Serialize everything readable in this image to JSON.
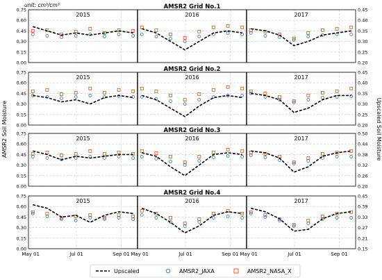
{
  "figure": {
    "unit_label": "unit: cm³/cm³",
    "left_axis_label": "AMSR2 Soil Moisture",
    "right_axis_label": "Upscaled Soil Moisture"
  },
  "legend": {
    "items": [
      {
        "label": "Upscaled",
        "style": "dashed-line",
        "color": "#000000"
      },
      {
        "label": "AMSR2_JAXA",
        "style": "circle",
        "color": "#1f77b4"
      },
      {
        "label": "AMSR2_NASA_X",
        "style": "square",
        "color": "#ff4500"
      }
    ]
  },
  "chart_data": [
    {
      "type": "scatter",
      "title": "AMSR2 Grid No.1",
      "panels": [
        "2015",
        "2016",
        "2017"
      ],
      "x_ticks": [
        "May 01",
        "Jul 01",
        "Sep 01"
      ],
      "left_ylim": [
        0.0,
        0.75
      ],
      "left_ticks": [
        "0.00",
        "0.15",
        "0.30",
        "0.45",
        "0.60",
        "0.75"
      ],
      "right_ylim": [
        0.2,
        0.45
      ],
      "right_ticks": [
        "0.20",
        "0.25",
        "0.30",
        "0.35",
        "0.40",
        "0.45"
      ],
      "series": [
        {
          "name": "Upscaled",
          "axis": "right",
          "by_year": {
            "2015": [
              0.37,
              0.35,
              0.33,
              0.34,
              0.33,
              0.34,
              0.35,
              0.34
            ],
            "2016": [
              0.36,
              0.34,
              0.3,
              0.26,
              0.3,
              0.34,
              0.35,
              0.34
            ],
            "2017": [
              0.36,
              0.35,
              0.33,
              0.28,
              0.3,
              0.33,
              0.34,
              0.35
            ]
          }
        },
        {
          "name": "AMSR2_JAXA",
          "axis": "left",
          "by_year": {
            "2015": [
              0.4,
              0.38,
              0.36,
              0.38,
              0.4,
              0.37,
              0.4,
              0.38
            ],
            "2016": [
              0.4,
              0.37,
              0.34,
              0.3,
              0.37,
              0.4,
              0.42,
              0.4
            ],
            "2017": [
              0.42,
              0.38,
              0.36,
              0.32,
              0.37,
              0.39,
              0.4,
              0.4
            ]
          }
        },
        {
          "name": "AMSR2_NASA_X",
          "axis": "left",
          "by_year": {
            "2015": [
              0.45,
              0.46,
              0.4,
              0.44,
              0.48,
              0.42,
              0.46,
              0.45
            ],
            "2016": [
              0.5,
              0.46,
              0.4,
              0.35,
              0.44,
              0.5,
              0.52,
              0.5
            ],
            "2017": [
              0.46,
              0.44,
              0.4,
              0.34,
              0.42,
              0.46,
              0.48,
              0.5
            ]
          }
        }
      ]
    },
    {
      "type": "scatter",
      "title": "AMSR2 Grid No.2",
      "panels": [
        "2015",
        "2016",
        "2017"
      ],
      "x_ticks": [
        "May 01",
        "Jul 01",
        "Sep 01"
      ],
      "left_ylim": [
        0.0,
        0.75
      ],
      "left_ticks": [
        "0.00",
        "0.15",
        "0.30",
        "0.45",
        "0.60",
        "0.75"
      ],
      "right_ylim": [
        0.2,
        0.45
      ],
      "right_ticks": [
        "0.20",
        "0.25",
        "0.30",
        "0.35",
        "0.40",
        "0.45"
      ],
      "series": [
        {
          "name": "Upscaled",
          "axis": "right",
          "by_year": {
            "2015": [
              0.34,
              0.33,
              0.31,
              0.32,
              0.3,
              0.33,
              0.34,
              0.33
            ],
            "2016": [
              0.34,
              0.32,
              0.28,
              0.24,
              0.29,
              0.33,
              0.34,
              0.33
            ],
            "2017": [
              0.35,
              0.34,
              0.32,
              0.26,
              0.28,
              0.32,
              0.34,
              0.34
            ]
          }
        },
        {
          "name": "AMSR2_JAXA",
          "axis": "left",
          "by_year": {
            "2015": [
              0.42,
              0.4,
              0.38,
              0.4,
              0.42,
              0.4,
              0.41,
              0.4
            ],
            "2016": [
              0.4,
              0.37,
              0.34,
              0.3,
              0.36,
              0.4,
              0.42,
              0.42
            ],
            "2017": [
              0.45,
              0.4,
              0.36,
              0.32,
              0.36,
              0.39,
              0.4,
              0.41
            ]
          }
        },
        {
          "name": "AMSR2_NASA_X",
          "axis": "left",
          "by_year": {
            "2015": [
              0.48,
              0.5,
              0.44,
              0.46,
              0.52,
              0.46,
              0.5,
              0.48
            ],
            "2016": [
              0.52,
              0.48,
              0.42,
              0.36,
              0.44,
              0.5,
              0.54,
              0.52
            ],
            "2017": [
              0.48,
              0.45,
              0.4,
              0.34,
              0.42,
              0.46,
              0.48,
              0.52
            ]
          }
        }
      ]
    },
    {
      "type": "scatter",
      "title": "AMSR2 Grid No.3",
      "panels": [
        "2015",
        "2016",
        "2017"
      ],
      "x_ticks": [
        "May 01",
        "Jul 01",
        "Sep 01"
      ],
      "left_ylim": [
        0.0,
        0.75
      ],
      "left_ticks": [
        "0.00",
        "0.15",
        "0.30",
        "0.45",
        "0.60",
        "0.75"
      ],
      "right_ylim": [
        0.2,
        0.5
      ],
      "right_ticks": [
        "0.20",
        "0.26",
        "0.32",
        "0.38",
        "0.44",
        "0.50"
      ],
      "series": [
        {
          "name": "Upscaled",
          "axis": "right",
          "by_year": {
            "2015": [
              0.4,
              0.38,
              0.35,
              0.37,
              0.36,
              0.37,
              0.38,
              0.38
            ],
            "2016": [
              0.39,
              0.37,
              0.31,
              0.26,
              0.32,
              0.38,
              0.39,
              0.38
            ],
            "2017": [
              0.4,
              0.39,
              0.36,
              0.28,
              0.31,
              0.37,
              0.39,
              0.4
            ]
          }
        },
        {
          "name": "AMSR2_JAXA",
          "axis": "left",
          "by_year": {
            "2015": [
              0.42,
              0.4,
              0.38,
              0.4,
              0.42,
              0.4,
              0.42,
              0.4
            ],
            "2016": [
              0.42,
              0.39,
              0.35,
              0.3,
              0.36,
              0.41,
              0.43,
              0.42
            ],
            "2017": [
              0.44,
              0.41,
              0.37,
              0.32,
              0.36,
              0.4,
              0.42,
              0.42
            ]
          }
        },
        {
          "name": "AMSR2_NASA_X",
          "axis": "left",
          "by_year": {
            "2015": [
              0.46,
              0.48,
              0.44,
              0.46,
              0.5,
              0.46,
              0.48,
              0.46
            ],
            "2016": [
              0.5,
              0.47,
              0.42,
              0.34,
              0.42,
              0.48,
              0.52,
              0.5
            ],
            "2017": [
              0.48,
              0.46,
              0.42,
              0.34,
              0.4,
              0.46,
              0.48,
              0.5
            ]
          }
        }
      ]
    },
    {
      "type": "scatter",
      "title": "AMSR2 Grid No.4",
      "panels": [
        "2015",
        "2016",
        "2017"
      ],
      "x_ticks": [
        "May 01",
        "Jul 01",
        "Sep 01"
      ],
      "left_ylim": [
        0.0,
        0.75
      ],
      "left_ticks": [
        "0.00",
        "0.15",
        "0.30",
        "0.45",
        "0.60",
        "0.75"
      ],
      "right_ylim": [
        0.15,
        0.45
      ],
      "right_ticks": [
        "0.15",
        "0.21",
        "0.27",
        "0.33",
        "0.39",
        "0.45"
      ],
      "series": [
        {
          "name": "Upscaled",
          "axis": "right",
          "by_year": {
            "2015": [
              0.4,
              0.38,
              0.33,
              0.34,
              0.3,
              0.34,
              0.36,
              0.35
            ],
            "2016": [
              0.38,
              0.35,
              0.3,
              0.24,
              0.28,
              0.34,
              0.36,
              0.35
            ],
            "2017": [
              0.38,
              0.36,
              0.32,
              0.25,
              0.26,
              0.32,
              0.35,
              0.36
            ]
          }
        },
        {
          "name": "AMSR2_JAXA",
          "axis": "left",
          "by_year": {
            "2015": [
              0.5,
              0.46,
              0.42,
              0.4,
              0.44,
              0.42,
              0.44,
              0.42
            ],
            "2016": [
              0.48,
              0.44,
              0.38,
              0.32,
              0.38,
              0.44,
              0.46,
              0.44
            ],
            "2017": [
              0.5,
              0.45,
              0.4,
              0.32,
              0.36,
              0.42,
              0.44,
              0.44
            ]
          }
        },
        {
          "name": "AMSR2_NASA_X",
          "axis": "left",
          "by_year": {
            "2015": [
              0.52,
              0.5,
              0.44,
              0.46,
              0.48,
              0.44,
              0.48,
              0.46
            ],
            "2016": [
              0.54,
              0.5,
              0.44,
              0.36,
              0.42,
              0.5,
              0.54,
              0.5
            ],
            "2017": [
              0.52,
              0.48,
              0.42,
              0.34,
              0.4,
              0.46,
              0.5,
              0.52
            ]
          }
        }
      ]
    }
  ]
}
